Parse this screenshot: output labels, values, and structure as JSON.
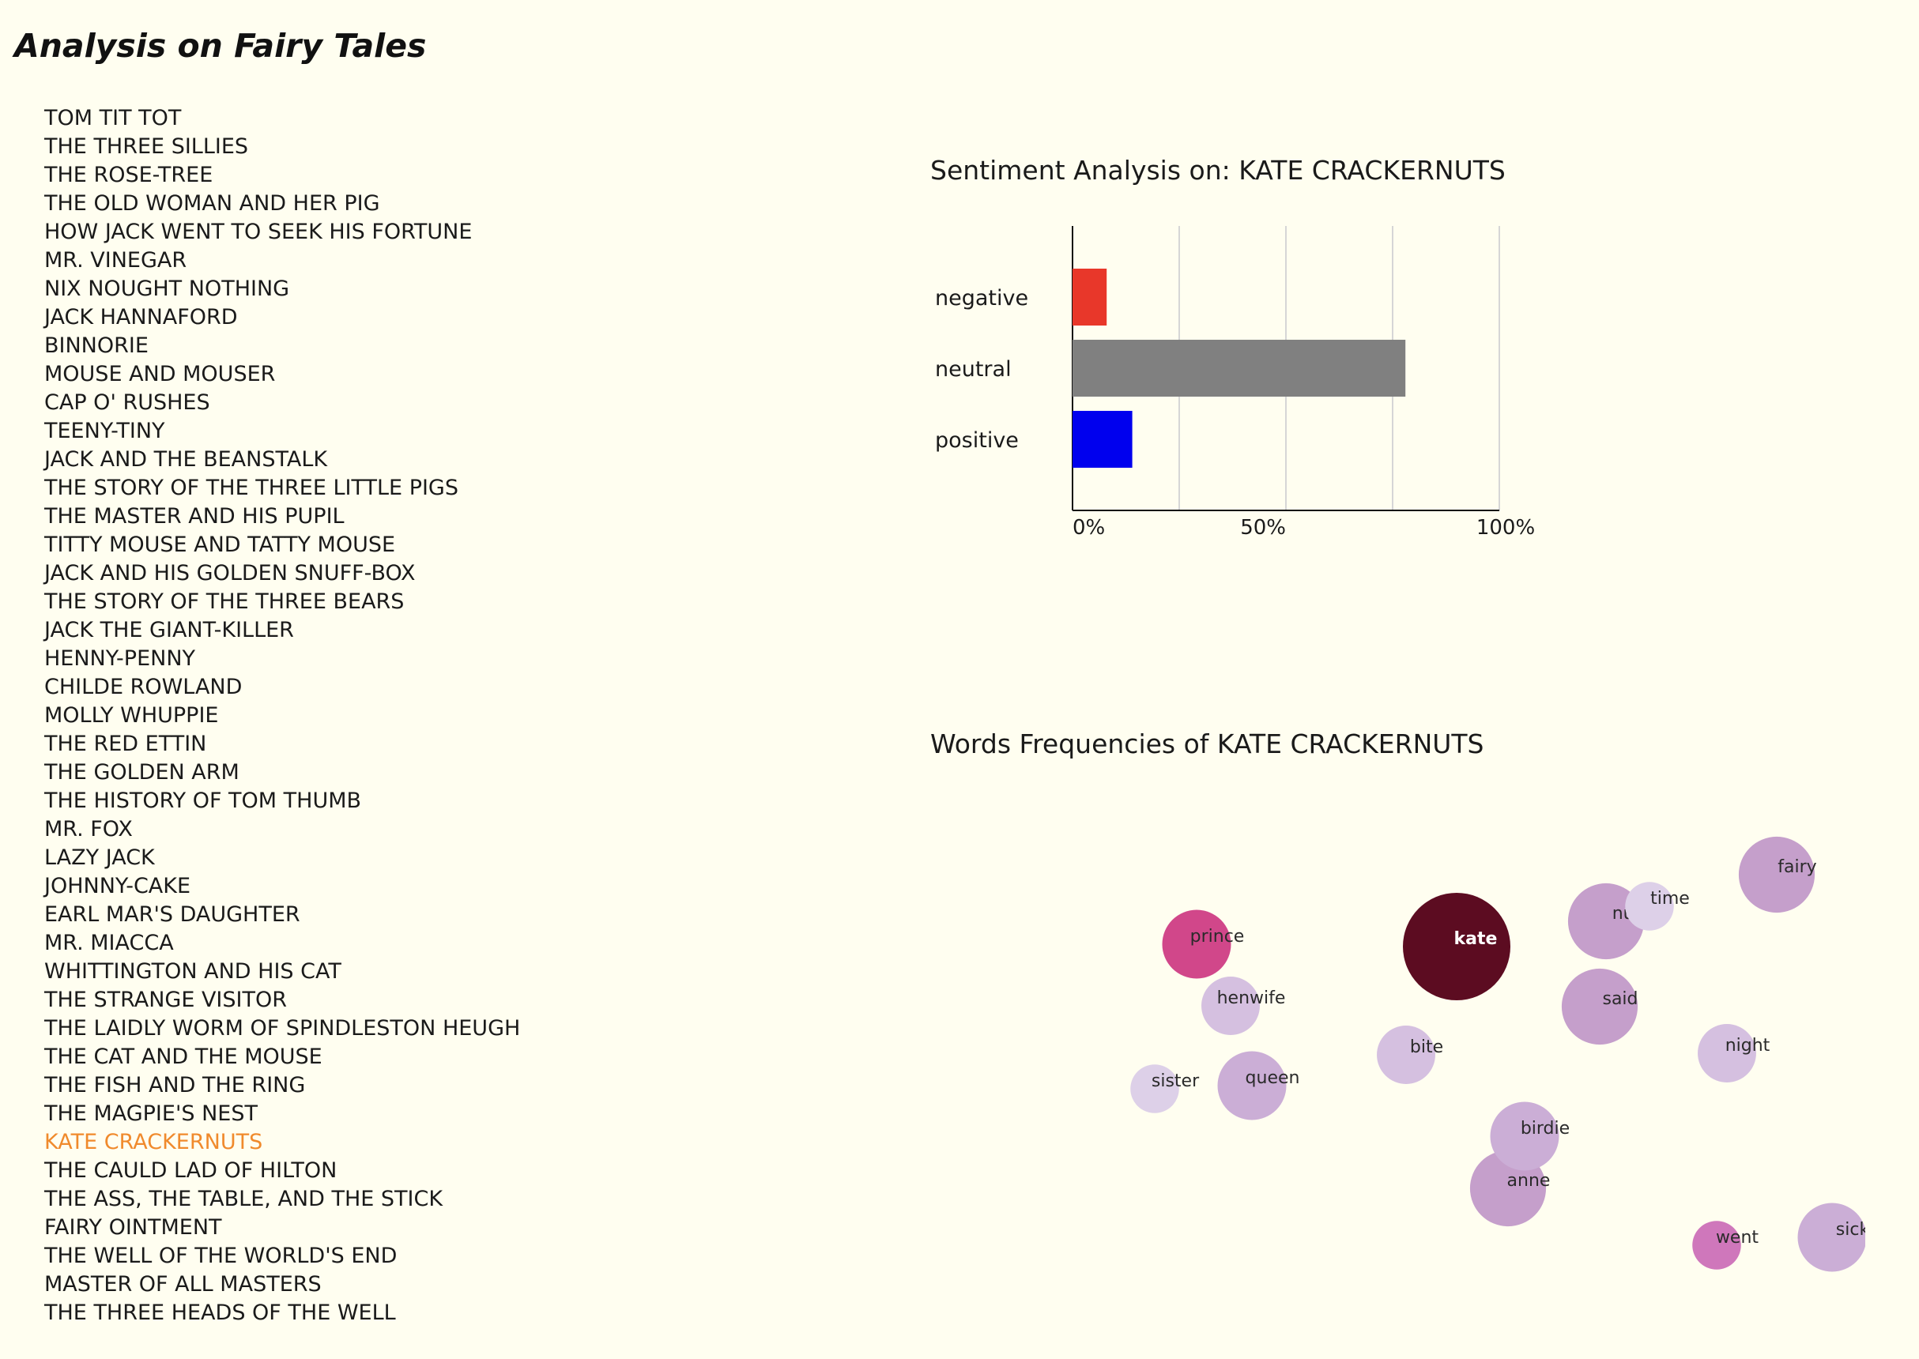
{
  "app": {
    "title": "Analysis on Fairy Tales"
  },
  "stories": [
    "TOM TIT TOT",
    "THE THREE SILLIES",
    "THE ROSE-TREE",
    "THE OLD WOMAN AND HER PIG",
    "HOW JACK WENT TO SEEK HIS FORTUNE",
    "MR. VINEGAR",
    "NIX NOUGHT NOTHING",
    "JACK HANNAFORD",
    "BINNORIE",
    "MOUSE AND MOUSER",
    "CAP O' RUSHES",
    "TEENY-TINY",
    "JACK AND THE BEANSTALK",
    "THE STORY OF THE THREE LITTLE PIGS",
    "THE MASTER AND HIS PUPIL",
    "TITTY MOUSE AND TATTY MOUSE",
    "JACK AND HIS GOLDEN SNUFF-BOX",
    "THE STORY OF THE THREE BEARS",
    "JACK THE GIANT-KILLER",
    "HENNY-PENNY",
    "CHILDE ROWLAND",
    "MOLLY WHUPPIE",
    "THE RED ETTIN",
    "THE GOLDEN ARM",
    "THE HISTORY OF TOM THUMB",
    "MR. FOX",
    "LAZY JACK",
    "JOHNNY-CAKE",
    "EARL MAR'S DAUGHTER",
    "MR. MIACCA",
    "WHITTINGTON AND HIS CAT",
    "THE STRANGE VISITOR",
    "THE LAIDLY WORM OF SPINDLESTON HEUGH",
    "THE CAT AND THE MOUSE",
    "THE FISH AND THE RING",
    "THE MAGPIE'S NEST",
    "KATE CRACKERNUTS",
    "THE CAULD LAD OF HILTON",
    "THE ASS, THE TABLE, AND THE STICK",
    "FAIRY OINTMENT",
    "THE WELL OF THE WORLD'S END",
    "MASTER OF ALL MASTERS",
    "THE THREE HEADS OF THE WELL"
  ],
  "selected_story": "KATE CRACKERNUTS",
  "colors": {
    "background": "#fffef0",
    "selected_story": "#f08a2c",
    "negative": "#e8372a",
    "neutral": "#808080",
    "positive": "#0000ee"
  },
  "sentiment": {
    "title": "Sentiment Analysis on: KATE CRACKERNUTS"
  },
  "word_freq": {
    "title": "Words Frequencies of KATE CRACKERNUTS"
  },
  "chart_data": [
    {
      "type": "bar",
      "orientation": "horizontal",
      "title": "Sentiment Analysis on: KATE CRACKERNUTS",
      "categories": [
        "negative",
        "neutral",
        "positive"
      ],
      "values": [
        8,
        78,
        14
      ],
      "colors": [
        "#e8372a",
        "#808080",
        "#0000ee"
      ],
      "xlim": [
        0,
        100
      ],
      "x_ticks": [
        "0%",
        "50%",
        "100%"
      ],
      "grid": "vertical"
    },
    {
      "type": "bubble",
      "title": "Words Frequencies of KATE CRACKERNUTS",
      "words": [
        {
          "word": "kate",
          "value": 44,
          "color": "#5c0c21"
        },
        {
          "word": "prince",
          "value": 18,
          "color": "#d1478a"
        },
        {
          "word": "nut",
          "value": 22,
          "color": "#c59fcb"
        },
        {
          "word": "said",
          "value": 22,
          "color": "#c59fcb"
        },
        {
          "word": "fairy",
          "value": 22,
          "color": "#c59fcb"
        },
        {
          "word": "anne",
          "value": 22,
          "color": "#c59fcb"
        },
        {
          "word": "queen",
          "value": 18,
          "color": "#cbaed6"
        },
        {
          "word": "birdie",
          "value": 18,
          "color": "#cbaed6"
        },
        {
          "word": "sick",
          "value": 18,
          "color": "#cbaed6"
        },
        {
          "word": "henwife",
          "value": 13,
          "color": "#d5c0e0"
        },
        {
          "word": "bite",
          "value": 13,
          "color": "#d5c0e0"
        },
        {
          "word": "night",
          "value": 13,
          "color": "#d5c0e0"
        },
        {
          "word": "time",
          "value": 9,
          "color": "#ddd0e8"
        },
        {
          "word": "sister",
          "value": 9,
          "color": "#ddd0e8"
        },
        {
          "word": "went",
          "value": 9,
          "color": "#cf77bb"
        }
      ]
    }
  ]
}
